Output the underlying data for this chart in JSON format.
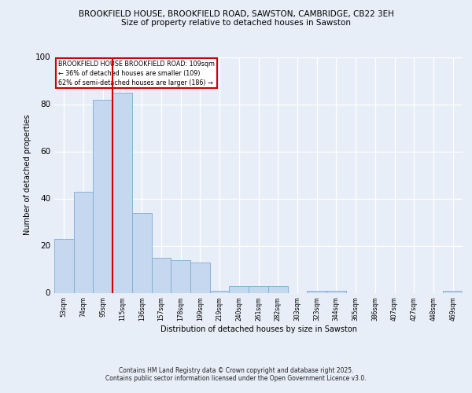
{
  "title1": "BROOKFIELD HOUSE, BROOKFIELD ROAD, SAWSTON, CAMBRIDGE, CB22 3EH",
  "title2": "Size of property relative to detached houses in Sawston",
  "xlabel": "Distribution of detached houses by size in Sawston",
  "ylabel": "Number of detached properties",
  "categories": [
    "53sqm",
    "74sqm",
    "95sqm",
    "115sqm",
    "136sqm",
    "157sqm",
    "178sqm",
    "199sqm",
    "219sqm",
    "240sqm",
    "261sqm",
    "282sqm",
    "303sqm",
    "323sqm",
    "344sqm",
    "365sqm",
    "386sqm",
    "407sqm",
    "427sqm",
    "448sqm",
    "469sqm"
  ],
  "values": [
    23,
    43,
    82,
    85,
    34,
    15,
    14,
    13,
    1,
    3,
    3,
    3,
    0,
    1,
    1,
    0,
    0,
    0,
    0,
    0,
    1
  ],
  "bar_color": "#c5d8f0",
  "bar_edge_color": "#7aadd4",
  "vline_color": "#cc0000",
  "vline_pos": 2.5,
  "annotation_title": "BROOKFIELD HOUSE BROOKFIELD ROAD: 109sqm",
  "annotation_line1": "← 36% of detached houses are smaller (109)",
  "annotation_line2": "62% of semi-detached houses are larger (186) →",
  "annotation_box_edgecolor": "#cc0000",
  "ylim": [
    0,
    100
  ],
  "yticks": [
    0,
    20,
    40,
    60,
    80,
    100
  ],
  "plot_bg_color": "#e8eef8",
  "fig_bg_color": "#e8eef8",
  "footer1": "Contains HM Land Registry data © Crown copyright and database right 2025.",
  "footer2": "Contains public sector information licensed under the Open Government Licence v3.0."
}
